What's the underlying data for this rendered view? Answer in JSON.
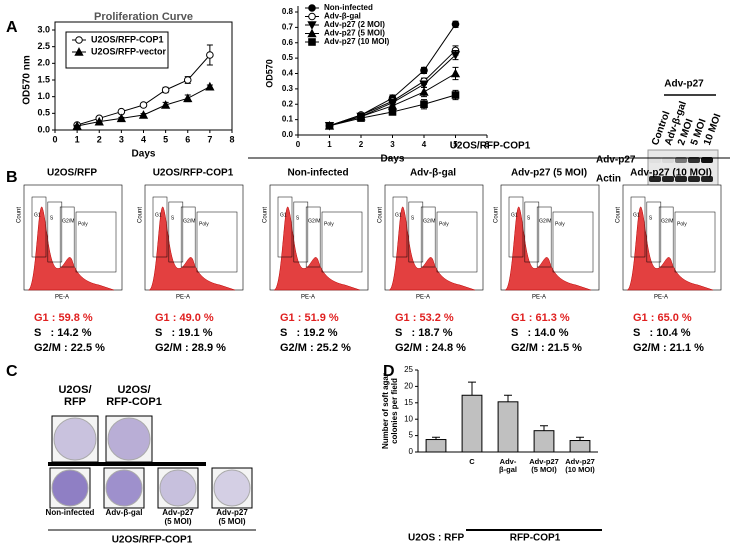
{
  "panel_labels": [
    "A",
    "B",
    "C",
    "D"
  ],
  "chart_data": [
    {
      "type": "line",
      "title": "Proliferation Curve",
      "xlabel": "Days",
      "ylabel": "OD570 nm",
      "x": [
        1,
        2,
        3,
        4,
        5,
        6,
        7
      ],
      "xlim": [
        0,
        8
      ],
      "xticks": [
        0,
        1,
        2,
        3,
        4,
        5,
        6,
        7,
        8
      ],
      "ylim": [
        0,
        3
      ],
      "yticks": [
        {
          "value": 0,
          "label": "0.0"
        },
        0.5,
        {
          "value": 1,
          "label": "1.0"
        },
        1.5,
        {
          "value": 2,
          "label": "2.0"
        },
        2.5,
        {
          "value": 3,
          "label": "3.0"
        }
      ],
      "legend": "upper left",
      "legend_box": true,
      "series": [
        {
          "name": "U2OS/RFP-COP1",
          "color": "#000000",
          "marker": "open-circle",
          "values": [
            0.15,
            0.35,
            0.55,
            0.75,
            1.2,
            1.5,
            2.25
          ],
          "errors": [
            0.02,
            0.03,
            0.03,
            0.05,
            0.08,
            0.1,
            0.3
          ]
        },
        {
          "name": "U2OS/RFP-vector",
          "color": "#000000",
          "marker": "triangle",
          "values": [
            0.12,
            0.25,
            0.35,
            0.45,
            0.75,
            0.95,
            1.3
          ],
          "errors": [
            0.02,
            0.02,
            0.03,
            0.04,
            0.08,
            0.1,
            0.05
          ]
        }
      ]
    },
    {
      "type": "line",
      "xlabel": "Days",
      "ylabel": "OD570",
      "x": [
        1,
        2,
        3,
        4,
        5
      ],
      "xlim": [
        0,
        6
      ],
      "xticks": [
        0,
        1,
        2,
        3,
        4,
        5,
        6
      ],
      "ylim": [
        0,
        0.8
      ],
      "yticks": [
        {
          "value": 0,
          "label": "0.0"
        },
        0.1,
        0.2,
        0.3,
        0.4,
        0.5,
        0.6,
        0.7,
        0.8
      ],
      "legend": "upper left",
      "legend_box": false,
      "series": [
        {
          "name": "Non-infected",
          "color": "#000000",
          "marker": "filled-circle",
          "values": [
            0.06,
            0.13,
            0.24,
            0.42,
            0.72
          ],
          "errors": [
            0.005,
            0.01,
            0.02,
            0.02,
            0.02
          ]
        },
        {
          "name": "Adv-β-gal",
          "color": "#000000",
          "marker": "open-circle",
          "values": [
            0.06,
            0.13,
            0.22,
            0.35,
            0.55
          ],
          "errors": [
            0.005,
            0.01,
            0.02,
            0.02,
            0.03
          ]
        },
        {
          "name": "Adv-p27 (2 MOI)",
          "color": "#000000",
          "marker": "triangle-down",
          "values": [
            0.06,
            0.12,
            0.21,
            0.33,
            0.52
          ],
          "errors": [
            0.005,
            0.01,
            0.02,
            0.02,
            0.03
          ]
        },
        {
          "name": "Adv-p27 (5 MOI)",
          "color": "#000000",
          "marker": "triangle",
          "values": [
            0.06,
            0.12,
            0.19,
            0.28,
            0.4
          ],
          "errors": [
            0.005,
            0.01,
            0.02,
            0.03,
            0.04
          ]
        },
        {
          "name": "Adv-p27 (10 MOI)",
          "color": "#000000",
          "marker": "square",
          "values": [
            0.06,
            0.11,
            0.15,
            0.2,
            0.26
          ],
          "errors": [
            0.005,
            0.01,
            0.02,
            0.03,
            0.03
          ]
        }
      ]
    },
    {
      "type": "bar",
      "ylabel": "Number of soft agar\ncolonies per field",
      "categories": [
        null,
        "C",
        "Adv-\nβ-gal",
        "Adv-p27\n(5 MOI)",
        "Adv-p27\n(10 MOI)"
      ],
      "values": [
        3.8,
        17.3,
        15.3,
        6.5,
        3.5
      ],
      "errors": [
        0.7,
        4,
        2,
        1.5,
        1
      ],
      "color": "#c0c0c0",
      "ylim": [
        0,
        25
      ],
      "yticks": [
        0,
        5,
        10,
        15,
        20,
        25
      ],
      "group_labels": [
        "U2OS : RFP",
        "RFP-COP1"
      ]
    }
  ],
  "blot": {
    "header": "Adv-p27",
    "lanes": [
      "Control",
      "Adv-β-gal",
      "2 MOI",
      "5 MOI",
      "10 MOI"
    ],
    "rows": [
      "Adv-p27",
      "Actin"
    ]
  },
  "flow": {
    "group_header": "U2OS/RFP-COP1",
    "ylabel": "Count",
    "xlabel": "PE-A",
    "gates": [
      "G1",
      "S",
      "G2/M",
      "Poly"
    ],
    "samples": [
      {
        "name": "U2OS/RFP",
        "g1": "G1 : 59.8 %",
        "s": "S   : 14.2 %",
        "g2m": "G2/M : 22.5 %"
      },
      {
        "name": "U2OS/RFP-COP1",
        "g1": "G1 : 49.0 %",
        "s": "S   : 19.1 %",
        "g2m": "G2/M : 28.9 %"
      },
      {
        "name": "Non-infected",
        "g1": "G1 : 51.9 %",
        "s": "S   : 19.2 %",
        "g2m": "G2/M : 25.2 %"
      },
      {
        "name": "Adv-β-gal",
        "g1": "G1 : 53.2 %",
        "s": "S   : 18.7 %",
        "g2m": "G2/M : 24.8 %"
      },
      {
        "name": "Adv-p27 (5 MOI)",
        "g1": "G1 : 61.3 %",
        "s": "S   : 14.0 %",
        "g2m": "G2/M : 21.5 %"
      },
      {
        "name": "Adv-p27 (10 MOI)",
        "g1": "G1 : 65.0 %",
        "s": "S   : 10.4 %",
        "g2m": "G2/M : 21.1 %"
      }
    ]
  },
  "colony": {
    "top": [
      "U2OS/\nRFP",
      "U2OS/\nRFP-COP1"
    ],
    "bottom": [
      "Non-infected",
      "Adv-β-gal",
      "Adv-p27\n(5 MOI)",
      "Adv-p27\n(5 MOI)"
    ],
    "footer": "U2OS/RFP-COP1"
  }
}
